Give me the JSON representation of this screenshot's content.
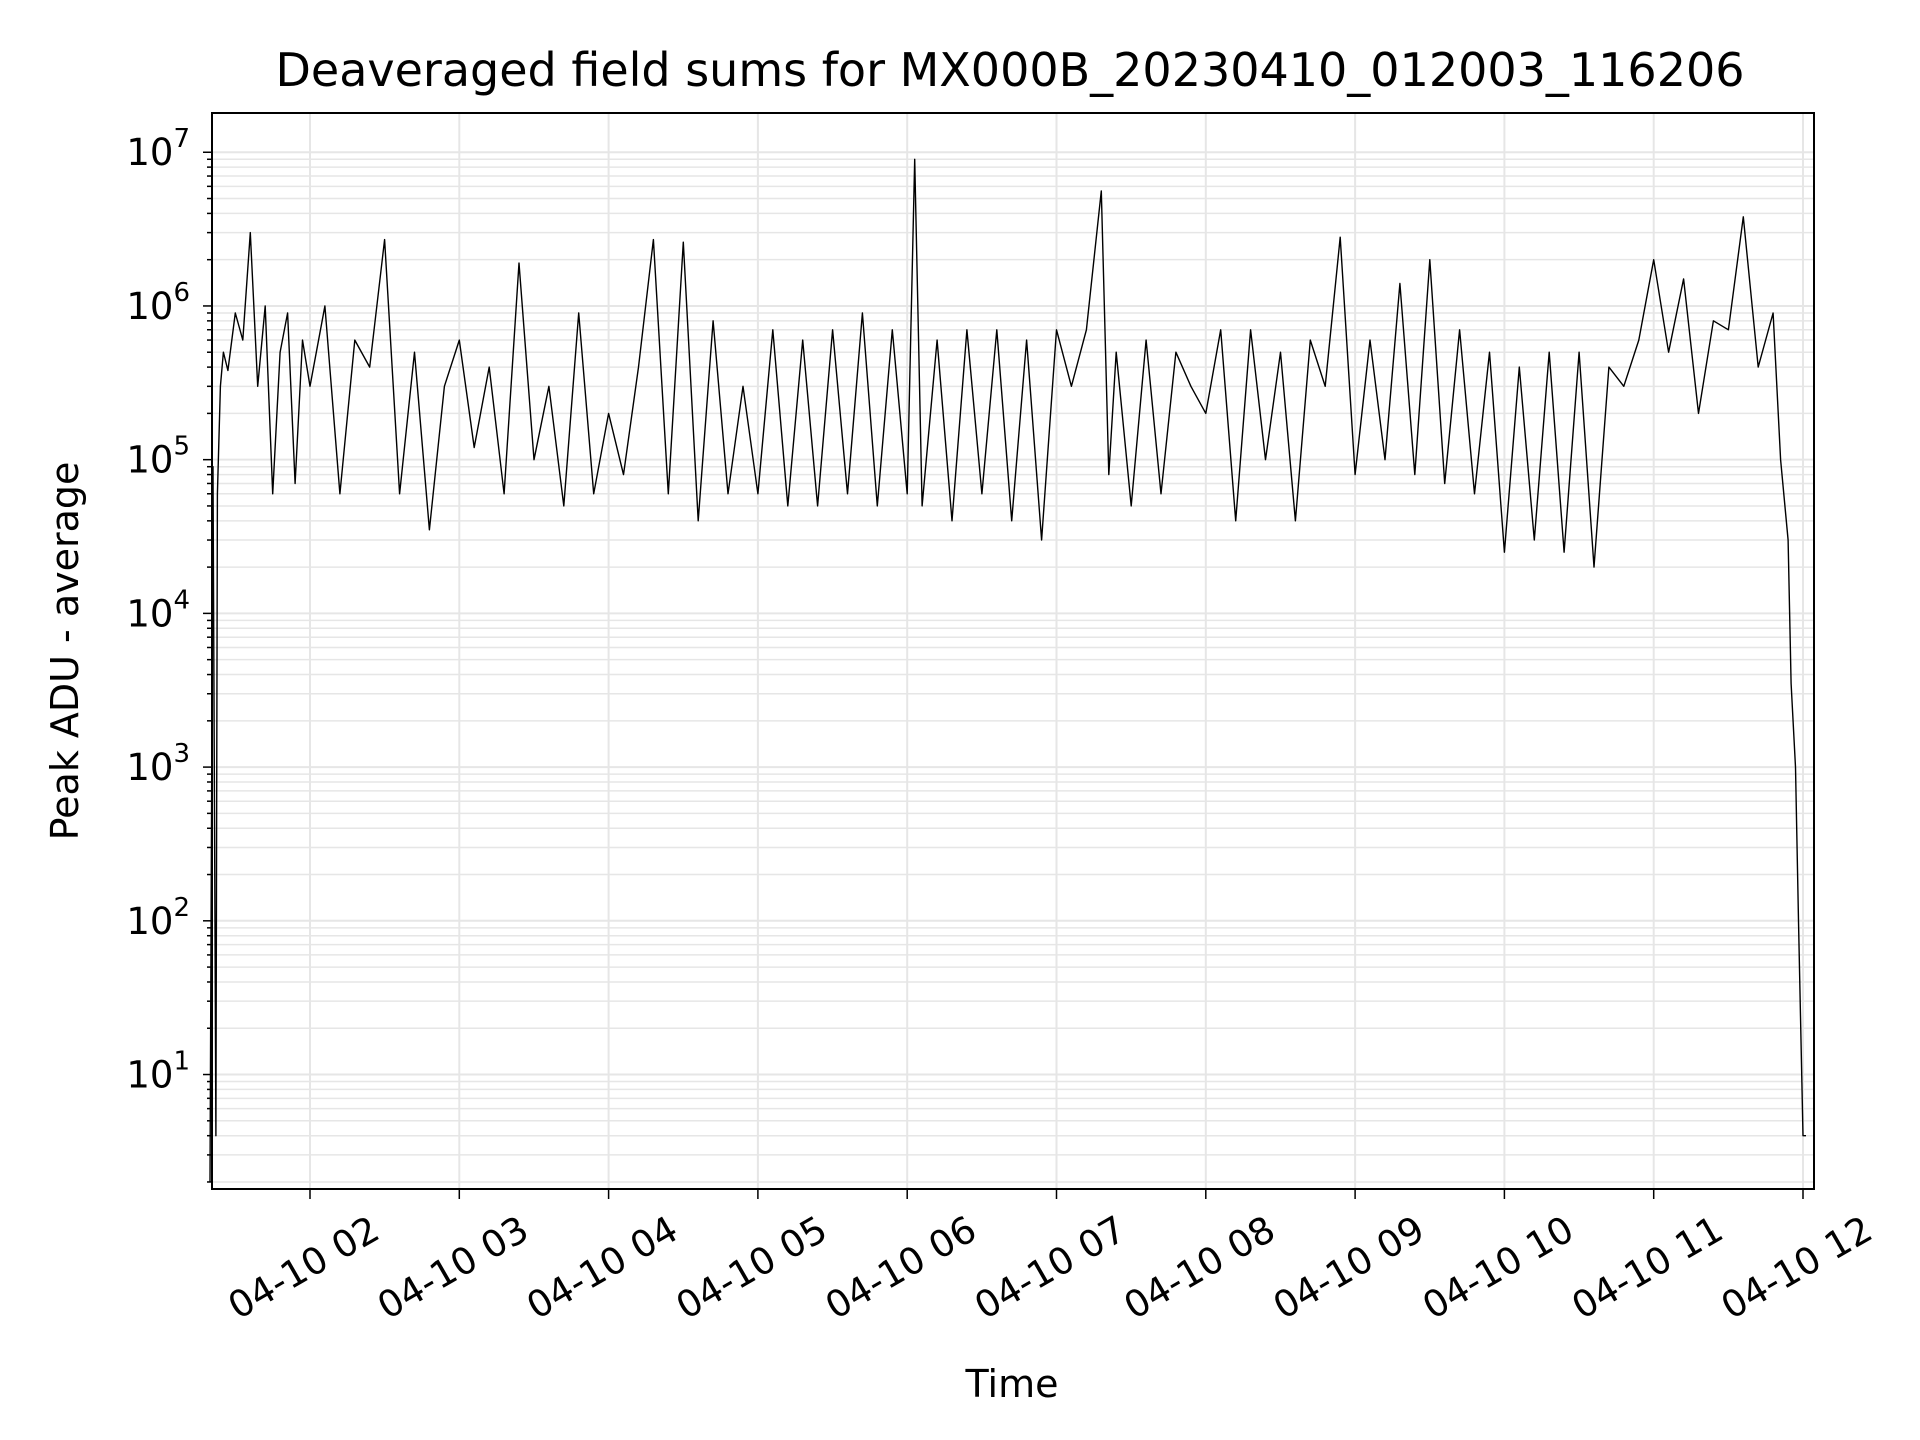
{
  "chart_data": {
    "type": "line",
    "title": "Deaveraged field sums for MX000B_20230410_012003_116206",
    "xlabel": "Time",
    "ylabel": "Peak ADU - average",
    "yscale": "log",
    "grid": "major and minor",
    "legend": "none",
    "x_tick_labels": [
      "04-10 02",
      "04-10 03",
      "04-10 04",
      "04-10 05",
      "04-10 06",
      "04-10 07",
      "04-10 08",
      "04-10 09",
      "04-10 10",
      "04-10 11",
      "04-10 12"
    ],
    "y_tick_labels": [
      {
        "base": "10",
        "exp": "1"
      },
      {
        "base": "10",
        "exp": "2"
      },
      {
        "base": "10",
        "exp": "3"
      },
      {
        "base": "10",
        "exp": "4"
      },
      {
        "base": "10",
        "exp": "5"
      },
      {
        "base": "10",
        "exp": "6"
      },
      {
        "base": "10",
        "exp": "7"
      }
    ],
    "x_range": [
      "2023-04-10 01:20",
      "2023-04-10 12:01"
    ],
    "ylim": [
      1.8,
      18000000
    ],
    "series": [
      {
        "color": "#000000",
        "x_unit": "hour of 2023-04-10",
        "x": [
          1.33,
          1.35,
          1.37,
          1.38,
          1.4,
          1.42,
          1.45,
          1.5,
          1.55,
          1.6,
          1.65,
          1.7,
          1.75,
          1.8,
          1.85,
          1.9,
          1.95,
          2.0,
          2.1,
          2.2,
          2.3,
          2.4,
          2.5,
          2.6,
          2.7,
          2.8,
          2.9,
          3.0,
          3.1,
          3.2,
          3.3,
          3.4,
          3.5,
          3.6,
          3.7,
          3.8,
          3.9,
          4.0,
          4.1,
          4.2,
          4.3,
          4.4,
          4.5,
          4.6,
          4.7,
          4.8,
          4.9,
          5.0,
          5.1,
          5.2,
          5.3,
          5.4,
          5.5,
          5.6,
          5.7,
          5.8,
          5.9,
          6.0,
          6.05,
          6.1,
          6.2,
          6.3,
          6.4,
          6.5,
          6.6,
          6.7,
          6.8,
          6.9,
          7.0,
          7.1,
          7.2,
          7.3,
          7.35,
          7.4,
          7.5,
          7.6,
          7.7,
          7.8,
          7.9,
          8.0,
          8.1,
          8.2,
          8.3,
          8.4,
          8.5,
          8.6,
          8.7,
          8.8,
          8.9,
          9.0,
          9.1,
          9.2,
          9.3,
          9.4,
          9.5,
          9.6,
          9.7,
          9.8,
          9.9,
          10.0,
          10.1,
          10.2,
          10.3,
          10.4,
          10.5,
          10.6,
          10.7,
          10.8,
          10.9,
          11.0,
          11.1,
          11.2,
          11.3,
          11.4,
          11.5,
          11.6,
          11.7,
          11.8,
          11.85,
          11.9,
          11.92,
          11.95,
          11.97,
          12.0,
          12.02
        ],
        "y": [
          2,
          90000,
          4,
          60000,
          300000,
          500000,
          380000,
          900000,
          600000,
          3000000,
          300000,
          1000000,
          60000,
          500000,
          900000,
          70000,
          600000,
          300000,
          1000000,
          60000,
          600000,
          400000,
          2700000,
          60000,
          500000,
          35000,
          300000,
          600000,
          120000,
          400000,
          60000,
          1900000,
          100000,
          300000,
          50000,
          900000,
          60000,
          200000,
          80000,
          400000,
          2700000,
          60000,
          2600000,
          40000,
          800000,
          60000,
          300000,
          60000,
          700000,
          50000,
          600000,
          50000,
          700000,
          60000,
          900000,
          50000,
          700000,
          60000,
          9000000,
          50000,
          600000,
          40000,
          700000,
          60000,
          700000,
          40000,
          600000,
          30000,
          700000,
          300000,
          700000,
          5600000,
          80000,
          500000,
          50000,
          600000,
          60000,
          500000,
          300000,
          200000,
          700000,
          40000,
          700000,
          100000,
          500000,
          40000,
          600000,
          300000,
          2800000,
          80000,
          600000,
          100000,
          1400000,
          80000,
          2000000,
          70000,
          700000,
          60000,
          500000,
          25000,
          400000,
          30000,
          500000,
          25000,
          500000,
          20000,
          400000,
          300000,
          600000,
          2000000,
          500000,
          1500000,
          200000,
          800000,
          700000,
          3800000,
          400000,
          900000,
          100000,
          30000,
          3500,
          1000,
          100,
          4,
          4
        ]
      }
    ]
  }
}
